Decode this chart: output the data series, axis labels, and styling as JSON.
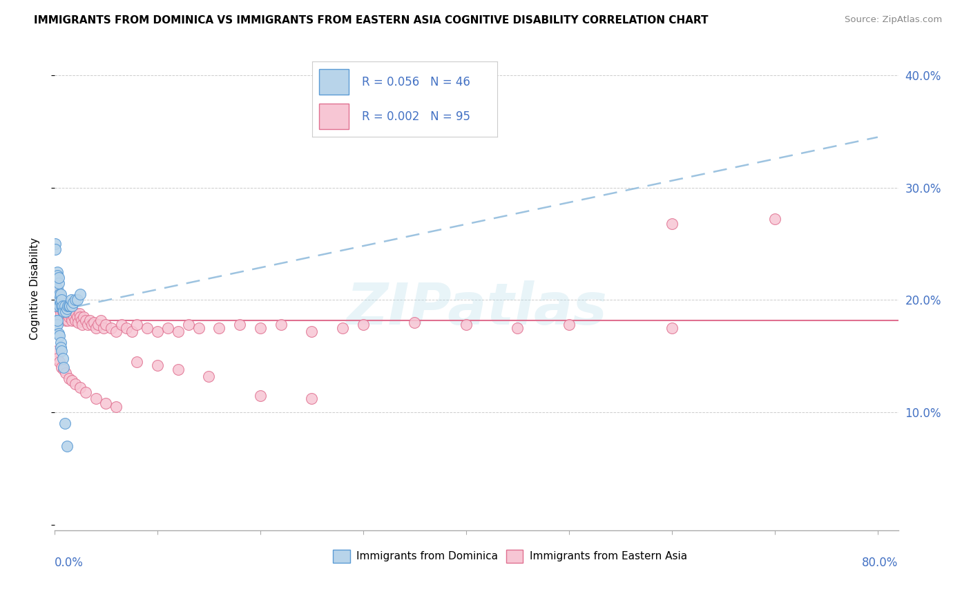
{
  "title": "IMMIGRANTS FROM DOMINICA VS IMMIGRANTS FROM EASTERN ASIA COGNITIVE DISABILITY CORRELATION CHART",
  "source": "Source: ZipAtlas.com",
  "ylabel": "Cognitive Disability",
  "color_dominica_fill": "#b8d4ea",
  "color_dominica_edge": "#5b9bd5",
  "color_eastern_asia_fill": "#f7c6d4",
  "color_eastern_asia_edge": "#e07090",
  "color_trendline_dominica": "#9dc3e0",
  "color_trendline_eastern_asia": "#e07090",
  "color_axis_blue": "#4472c4",
  "color_grid": "#cccccc",
  "xlim": [
    0.0,
    0.82
  ],
  "ylim": [
    -0.005,
    0.425
  ],
  "watermark": "ZIPatlas",
  "trendline_dom_x0": 0.0,
  "trendline_dom_y0": 0.19,
  "trendline_dom_x1": 0.8,
  "trendline_dom_y1": 0.345,
  "trendline_ea_y": 0.182,
  "dominica_x": [
    0.001,
    0.001,
    0.002,
    0.002,
    0.002,
    0.003,
    0.003,
    0.003,
    0.004,
    0.004,
    0.005,
    0.005,
    0.005,
    0.006,
    0.006,
    0.007,
    0.007,
    0.008,
    0.008,
    0.009,
    0.01,
    0.011,
    0.012,
    0.013,
    0.014,
    0.015,
    0.016,
    0.017,
    0.018,
    0.02,
    0.022,
    0.025,
    0.001,
    0.002,
    0.002,
    0.003,
    0.003,
    0.004,
    0.005,
    0.006,
    0.006,
    0.007,
    0.008,
    0.009,
    0.01,
    0.012
  ],
  "dominica_y": [
    0.25,
    0.245,
    0.218,
    0.2,
    0.195,
    0.225,
    0.222,
    0.21,
    0.215,
    0.22,
    0.2,
    0.195,
    0.205,
    0.198,
    0.205,
    0.195,
    0.2,
    0.192,
    0.195,
    0.19,
    0.195,
    0.19,
    0.192,
    0.195,
    0.195,
    0.195,
    0.2,
    0.195,
    0.198,
    0.2,
    0.2,
    0.205,
    0.175,
    0.182,
    0.178,
    0.178,
    0.182,
    0.17,
    0.168,
    0.162,
    0.158,
    0.155,
    0.148,
    0.14,
    0.09,
    0.07
  ],
  "eastern_asia_x": [
    0.001,
    0.002,
    0.002,
    0.003,
    0.003,
    0.004,
    0.004,
    0.005,
    0.005,
    0.006,
    0.006,
    0.007,
    0.007,
    0.008,
    0.008,
    0.009,
    0.01,
    0.01,
    0.011,
    0.012,
    0.012,
    0.013,
    0.014,
    0.015,
    0.015,
    0.016,
    0.017,
    0.018,
    0.019,
    0.02,
    0.021,
    0.022,
    0.023,
    0.024,
    0.025,
    0.026,
    0.027,
    0.028,
    0.03,
    0.032,
    0.034,
    0.036,
    0.038,
    0.04,
    0.042,
    0.045,
    0.048,
    0.05,
    0.055,
    0.06,
    0.065,
    0.07,
    0.075,
    0.08,
    0.09,
    0.1,
    0.11,
    0.12,
    0.13,
    0.14,
    0.16,
    0.18,
    0.2,
    0.22,
    0.25,
    0.28,
    0.3,
    0.35,
    0.4,
    0.45,
    0.5,
    0.6,
    0.7,
    0.002,
    0.003,
    0.005,
    0.007,
    0.009,
    0.011,
    0.014,
    0.017,
    0.02,
    0.025,
    0.03,
    0.04,
    0.05,
    0.06,
    0.08,
    0.1,
    0.12,
    0.15,
    0.2,
    0.25,
    0.6
  ],
  "eastern_asia_y": [
    0.2,
    0.195,
    0.21,
    0.2,
    0.195,
    0.198,
    0.205,
    0.192,
    0.2,
    0.195,
    0.188,
    0.195,
    0.2,
    0.19,
    0.195,
    0.188,
    0.185,
    0.195,
    0.182,
    0.188,
    0.192,
    0.182,
    0.185,
    0.188,
    0.195,
    0.185,
    0.182,
    0.188,
    0.185,
    0.182,
    0.188,
    0.185,
    0.18,
    0.188,
    0.185,
    0.182,
    0.178,
    0.185,
    0.182,
    0.178,
    0.182,
    0.178,
    0.18,
    0.175,
    0.178,
    0.182,
    0.175,
    0.178,
    0.175,
    0.172,
    0.178,
    0.175,
    0.172,
    0.178,
    0.175,
    0.172,
    0.175,
    0.172,
    0.178,
    0.175,
    0.175,
    0.178,
    0.175,
    0.178,
    0.172,
    0.175,
    0.178,
    0.18,
    0.178,
    0.175,
    0.178,
    0.175,
    0.272,
    0.155,
    0.148,
    0.145,
    0.14,
    0.138,
    0.135,
    0.13,
    0.128,
    0.125,
    0.122,
    0.118,
    0.112,
    0.108,
    0.105,
    0.145,
    0.142,
    0.138,
    0.132,
    0.115,
    0.112,
    0.268
  ]
}
